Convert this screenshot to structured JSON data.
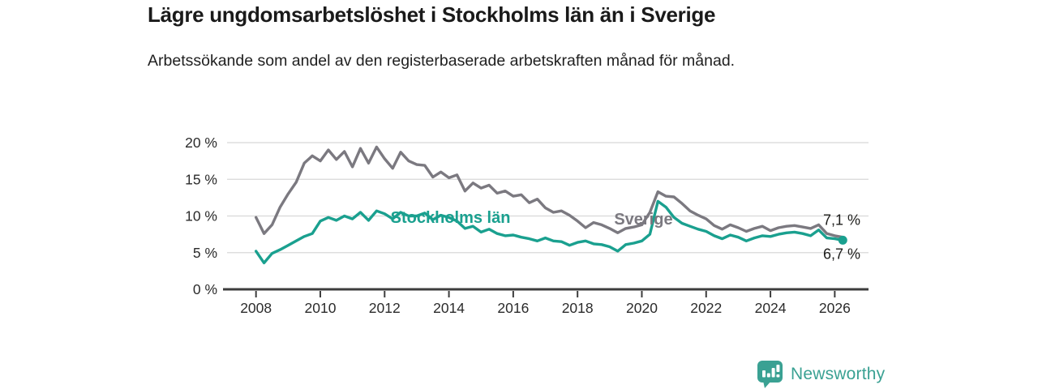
{
  "header": {
    "title": "Lägre ungdomsarbetslöshet i Stockholms län än i Sverige",
    "subtitle": "Arbetssökande som andel av den registerbaserade arbetskraften månad för månad."
  },
  "chart_data": {
    "type": "line",
    "x_start": 2008.0,
    "x_step": 0.25,
    "xlim": [
      2007.1,
      2027.05
    ],
    "ylim": [
      0,
      20
    ],
    "grid": true,
    "legend": "inline-labels",
    "xlabel": "",
    "ylabel": "",
    "x_ticks": [
      2008,
      2010,
      2012,
      2014,
      2016,
      2018,
      2020,
      2022,
      2024,
      2026
    ],
    "x_tick_labels": [
      "2008",
      "2010",
      "2012",
      "2014",
      "2016",
      "2018",
      "2020",
      "2022",
      "2024",
      "2026"
    ],
    "y_ticks": [
      0,
      5,
      10,
      15,
      20
    ],
    "y_tick_labels": [
      "0 %",
      "5 %",
      "10 %",
      "15 %",
      "20 %"
    ],
    "series": [
      {
        "name": "Sverige",
        "color": "#7b7980",
        "end_label": "7,1 %",
        "end_marker": false,
        "label_anchor": {
          "x": 2020.05,
          "y": 9.6
        },
        "values": [
          9.8,
          7.6,
          8.8,
          11.2,
          13.0,
          14.6,
          17.2,
          18.2,
          17.5,
          19.0,
          17.7,
          18.8,
          16.7,
          19.2,
          17.2,
          19.4,
          17.8,
          16.5,
          18.7,
          17.5,
          17.0,
          16.9,
          15.3,
          16.0,
          15.2,
          15.6,
          13.4,
          14.5,
          13.8,
          14.2,
          13.1,
          13.4,
          12.7,
          12.9,
          11.8,
          12.3,
          11.1,
          10.5,
          10.7,
          10.1,
          9.3,
          8.4,
          9.1,
          8.8,
          8.3,
          7.7,
          8.3,
          8.5,
          8.8,
          10.5,
          13.3,
          12.7,
          12.6,
          11.7,
          10.7,
          10.1,
          9.6,
          8.7,
          8.2,
          8.8,
          8.4,
          7.9,
          8.3,
          8.6,
          8.0,
          8.4,
          8.6,
          8.7,
          8.5,
          8.3,
          8.8,
          7.6,
          7.3,
          7.1
        ]
      },
      {
        "name": "Stockholms län",
        "color": "#1aa08f",
        "end_label": "6,7 %",
        "end_marker": true,
        "label_anchor": {
          "x": 2014.05,
          "y": 9.85
        },
        "values": [
          5.2,
          3.6,
          4.9,
          5.4,
          6.0,
          6.6,
          7.2,
          7.6,
          9.3,
          9.8,
          9.4,
          10.0,
          9.6,
          10.5,
          9.4,
          10.7,
          10.3,
          9.6,
          10.5,
          10.0,
          10.0,
          10.4,
          9.5,
          10.1,
          9.8,
          9.3,
          8.3,
          8.6,
          7.8,
          8.2,
          7.6,
          7.3,
          7.4,
          7.1,
          6.9,
          6.6,
          7.0,
          6.6,
          6.5,
          6.0,
          6.4,
          6.6,
          6.2,
          6.1,
          5.8,
          5.2,
          6.1,
          6.3,
          6.6,
          7.5,
          12.0,
          11.2,
          9.8,
          9.0,
          8.6,
          8.2,
          7.9,
          7.3,
          6.9,
          7.4,
          7.1,
          6.6,
          7.0,
          7.3,
          7.2,
          7.5,
          7.7,
          7.8,
          7.6,
          7.3,
          8.1,
          7.0,
          6.9,
          6.7
        ]
      }
    ],
    "colors": {
      "grid": "#d8d8d8",
      "axis": "#3d3d3d",
      "tick_text": "#2b2b2b",
      "end_label_text": "#1d1d1b"
    }
  },
  "footer": {
    "brand": "Newsworthy",
    "brand_color": "#3aa193",
    "logo_icon": "bar-chart-speech-bubble-icon"
  }
}
